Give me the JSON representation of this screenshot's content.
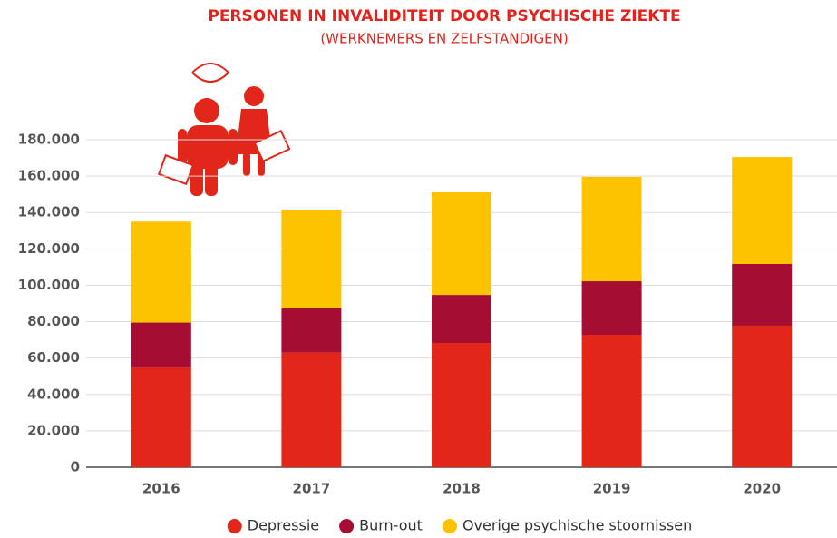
{
  "chart_data": {
    "type": "stacked_bar",
    "title": "PERSONEN IN INVALIDITEIT DOOR PSYCHISCHE ZIEKTE",
    "subtitle": "(WERKNEMERS EN ZELFSTANDIGEN)",
    "categories": [
      "2016",
      "2017",
      "2018",
      "2019",
      "2020"
    ],
    "series": [
      {
        "name": "Depressie",
        "color": "#e3261a",
        "values": [
          55000,
          63000,
          68300,
          72800,
          77800
        ]
      },
      {
        "name": "Burn-out",
        "color": "#a50d32",
        "values": [
          24500,
          24300,
          26400,
          29400,
          33900
        ]
      },
      {
        "name": "Overige psychische stoornissen",
        "color": "#fdc300",
        "values": [
          55500,
          54300,
          56400,
          57400,
          58800
        ]
      }
    ],
    "ylim": [
      0,
      180000
    ],
    "yticks": [
      0,
      {
        "value": 20000,
        "label": "20.000"
      },
      {
        "value": 40000,
        "label": "40.000"
      },
      {
        "value": 60000,
        "label": "60.000"
      },
      {
        "value": 80000,
        "label": "80.000"
      },
      {
        "value": 100000,
        "label": "100.000"
      },
      {
        "value": 120000,
        "label": "120.000"
      },
      {
        "value": 140000,
        "label": "140.000"
      },
      {
        "value": 160000,
        "label": "160.000"
      },
      {
        "value": 180000,
        "label": "180.000"
      }
    ],
    "grid": true,
    "legend": "bottom"
  }
}
